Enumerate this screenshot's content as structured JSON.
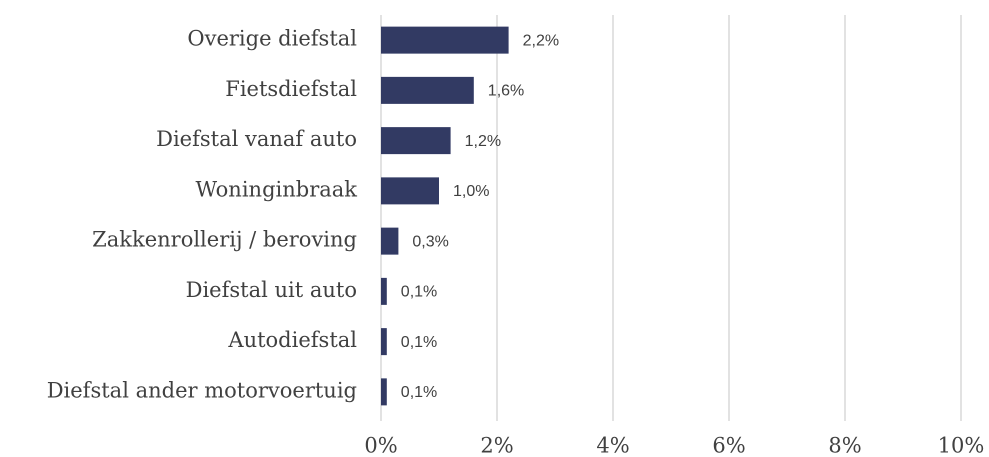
{
  "chart_data": {
    "type": "bar",
    "orientation": "horizontal",
    "categories": [
      "Overige diefstal",
      "Fietsdiefstal",
      "Diefstal vanaf auto",
      "Woninginbraak",
      "Zakkenrollerij / beroving",
      "Diefstal uit auto",
      "Autodiefstal",
      "Diefstal ander motorvoertuig"
    ],
    "values": [
      2.2,
      1.6,
      1.2,
      1.0,
      0.3,
      0.1,
      0.1,
      0.1
    ],
    "value_labels": [
      "2,2%",
      "1,6%",
      "1,2%",
      "1,0%",
      "0,3%",
      "0,1%",
      "0,1%",
      "0,1%"
    ],
    "color": "#323a63",
    "xlim": [
      0,
      10
    ],
    "xticks": [
      {
        "value": 0,
        "label": "0%"
      },
      {
        "value": 2,
        "label": "2%"
      },
      {
        "value": 4,
        "label": "4%"
      },
      {
        "value": 6,
        "label": "6%"
      },
      {
        "value": 8,
        "label": "8%"
      },
      {
        "value": 10,
        "label": "10%"
      }
    ],
    "grid": true
  }
}
